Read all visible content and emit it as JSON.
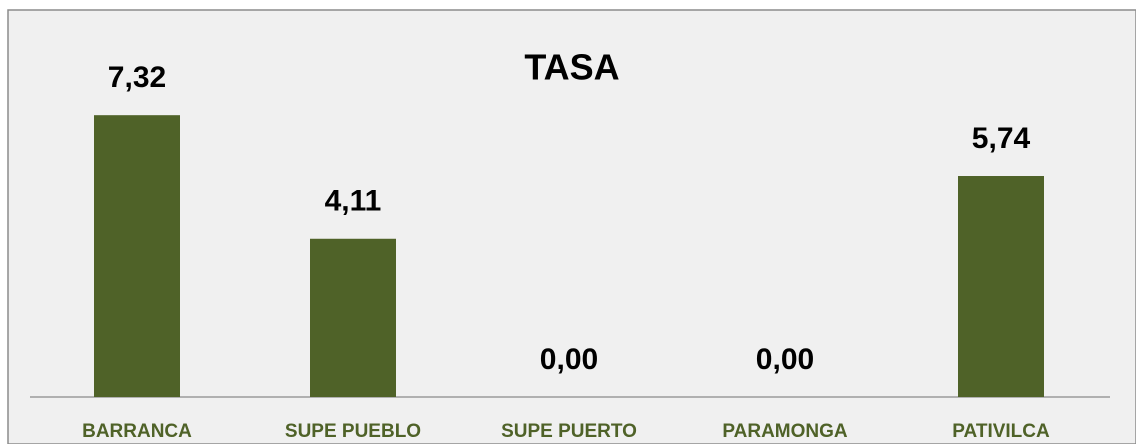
{
  "chart_data": {
    "type": "bar",
    "title": "TASA",
    "categories": [
      "BARRANCA",
      "SUPE PUEBLO",
      "SUPE PUERTO",
      "PARAMONGA",
      "PATIVILCA"
    ],
    "values": [
      7.32,
      4.11,
      0,
      0,
      5.74
    ],
    "value_labels": [
      "7,32",
      "4,11",
      "0,00",
      "0,00",
      "5,74"
    ],
    "color": "#4f6228"
  }
}
